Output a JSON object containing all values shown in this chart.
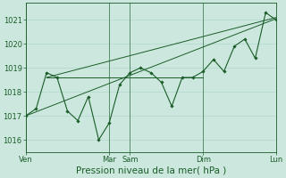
{
  "bg_color": "#cce8de",
  "grid_color": "#b0d8cc",
  "line_color": "#1a5c28",
  "marker_color": "#1a5c28",
  "xlabel": "Pression niveau de la mer( hPa )",
  "xlabel_fontsize": 7.5,
  "tick_fontsize": 6,
  "ylim": [
    1015.5,
    1021.7
  ],
  "yticks": [
    1016,
    1017,
    1018,
    1019,
    1020,
    1021
  ],
  "xtick_labels": [
    "Ven",
    "Mar",
    "Sam",
    "Dim",
    "Lun"
  ],
  "xtick_positions": [
    0,
    8,
    10,
    17,
    24
  ],
  "vline_positions": [
    0,
    8,
    10,
    17,
    24
  ],
  "main_x": [
    0,
    1,
    2,
    3,
    4,
    5,
    6,
    7,
    8,
    9,
    10,
    11,
    12,
    13,
    14,
    15,
    16,
    17,
    18,
    19,
    20,
    21,
    22,
    23,
    24
  ],
  "main_y": [
    1017.0,
    1017.3,
    1018.8,
    1018.6,
    1017.2,
    1016.8,
    1017.8,
    1016.0,
    1016.7,
    1018.3,
    1018.8,
    1019.0,
    1018.8,
    1018.4,
    1017.4,
    1018.6,
    1018.6,
    1018.85,
    1019.35,
    1018.85,
    1019.9,
    1020.2,
    1019.4,
    1021.3,
    1021.0
  ],
  "trend1_x": [
    2,
    24
  ],
  "trend1_y": [
    1018.6,
    1021.1
  ],
  "trend2_x": [
    2,
    17
  ],
  "trend2_y": [
    1018.6,
    1018.6
  ],
  "trend3_x": [
    0,
    24
  ],
  "trend3_y": [
    1017.0,
    1021.05
  ]
}
